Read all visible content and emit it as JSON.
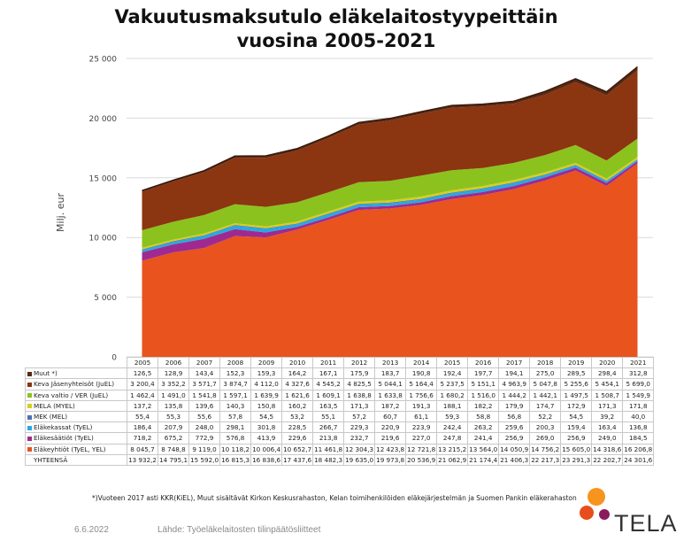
{
  "chart_data": {
    "type": "area",
    "stacked": true,
    "title_line1": "Vakuutusmaksutulo eläkelaitostyypeittäin",
    "title_line2": "vuosina 2005-2021",
    "ylabel": "Milj. eur",
    "ylim": [
      0,
      25000
    ],
    "y_ticks": [
      "0",
      "5 000",
      "10 000",
      "15 000",
      "20 000",
      "25 000"
    ],
    "y_tick_values": [
      0,
      5000,
      10000,
      15000,
      20000,
      25000
    ],
    "categories": [
      "2005",
      "2006",
      "2007",
      "2008",
      "2009",
      "2010",
      "2011",
      "2012",
      "2013",
      "2014",
      "2015",
      "2016",
      "2017",
      "2018",
      "2019",
      "2020",
      "2021"
    ],
    "series": [
      {
        "name": "Eläkeyhtiöt (TyEL, YEL)",
        "color": "#e8531e",
        "values": [
          8045.7,
          8748.8,
          9119.0,
          10118.2,
          10006.4,
          10652.7,
          11461.8,
          12304.3,
          12423.8,
          12721.8,
          13215.2,
          13564.0,
          14050.9,
          14756.2,
          15605.0,
          14318.6,
          16206.8
        ],
        "labels": [
          "8 045,7",
          "8 748,8",
          "9 119,0",
          "10 118,2",
          "10 006,4",
          "10 652,7",
          "11 461,8",
          "12 304,3",
          "12 423,8",
          "12 721,8",
          "13 215,2",
          "13 564,0",
          "14 050,9",
          "14 756,2",
          "15 605,0",
          "14 318,6",
          "16 206,8"
        ]
      },
      {
        "name": "Eläkesäätiöt (TyEL)",
        "color": "#9e2a91",
        "values": [
          718.2,
          675.2,
          772.9,
          576.8,
          413.9,
          229.6,
          213.8,
          232.7,
          219.6,
          227.0,
          247.8,
          241.4,
          256.9,
          269.0,
          256.9,
          249.0,
          184.5
        ],
        "labels": [
          "718,2",
          "675,2",
          "772,9",
          "576,8",
          "413,9",
          "229,6",
          "213,8",
          "232,7",
          "219,6",
          "227,0",
          "247,8",
          "241,4",
          "256,9",
          "269,0",
          "256,9",
          "249,0",
          "184,5"
        ]
      },
      {
        "name": "Eläkekassat (TyEL)",
        "color": "#29a8df",
        "values": [
          186.4,
          207.9,
          248.0,
          298.1,
          301.8,
          228.5,
          266.7,
          229.3,
          220.9,
          223.9,
          242.4,
          263.2,
          259.6,
          200.3,
          159.4,
          163.4,
          136.8
        ],
        "labels": [
          "186,4",
          "207,9",
          "248,0",
          "298,1",
          "301,8",
          "228,5",
          "266,7",
          "229,3",
          "220,9",
          "223,9",
          "242,4",
          "263,2",
          "259,6",
          "200,3",
          "159,4",
          "163,4",
          "136,8"
        ]
      },
      {
        "name": "MEK (MEL)",
        "color": "#4f6fb4",
        "values": [
          55.4,
          55.3,
          55.6,
          57.8,
          54.5,
          53.2,
          55.1,
          57.2,
          60.7,
          61.1,
          59.3,
          58.8,
          56.8,
          52.2,
          54.5,
          39.2,
          40.0
        ],
        "labels": [
          "55,4",
          "55,3",
          "55,6",
          "57,8",
          "54,5",
          "53,2",
          "55,1",
          "57,2",
          "60,7",
          "61,1",
          "59,3",
          "58,8",
          "56,8",
          "52,2",
          "54,5",
          "39,2",
          "40,0"
        ]
      },
      {
        "name": "MELA (MYEL)",
        "color": "#d6cf1c",
        "values": [
          137.2,
          135.8,
          139.6,
          140.3,
          150.8,
          160.2,
          163.5,
          171.3,
          187.2,
          191.3,
          188.1,
          182.2,
          179.9,
          174.7,
          172.9,
          171.3,
          171.8
        ],
        "labels": [
          "137,2",
          "135,8",
          "139,6",
          "140,3",
          "150,8",
          "160,2",
          "163,5",
          "171,3",
          "187,2",
          "191,3",
          "188,1",
          "182,2",
          "179,9",
          "174,7",
          "172,9",
          "171,3",
          "171,8"
        ]
      },
      {
        "name": "Keva valtio / VER (JuEL)",
        "color": "#8cc21e",
        "values": [
          1462.4,
          1491.0,
          1541.8,
          1597.1,
          1639.9,
          1621.6,
          1609.1,
          1638.8,
          1633.8,
          1756.6,
          1680.2,
          1516.0,
          1444.2,
          1442.1,
          1497.5,
          1508.7,
          1549.9
        ],
        "labels": [
          "1 462,4",
          "1 491,0",
          "1 541,8",
          "1 597,1",
          "1 639,9",
          "1 621,6",
          "1 609,1",
          "1 638,8",
          "1 633,8",
          "1 756,6",
          "1 680,2",
          "1 516,0",
          "1 444,2",
          "1 442,1",
          "1 497,5",
          "1 508,7",
          "1 549,9"
        ]
      },
      {
        "name": "Keva Jäsenyhteisöt (JuEL)",
        "color": "#8b3511",
        "values": [
          3200.4,
          3352.2,
          3571.7,
          3874.7,
          4112.0,
          4327.6,
          4545.2,
          4825.5,
          5044.1,
          5164.4,
          5237.5,
          5151.1,
          4963.9,
          5047.8,
          5255.6,
          5454.1,
          5699.0
        ],
        "labels": [
          "3 200,4",
          "3 352,2",
          "3 571,7",
          "3 874,7",
          "4 112,0",
          "4 327,6",
          "4 545,2",
          "4 825,5",
          "5 044,1",
          "5 164,4",
          "5 237,5",
          "5 151,1",
          "4 963,9",
          "5 047,8",
          "5 255,6",
          "5 454,1",
          "5 699,0"
        ]
      },
      {
        "name": "Muut *)",
        "color": "#5a2a12",
        "values": [
          126.5,
          128.9,
          143.4,
          152.3,
          159.3,
          164.2,
          167.1,
          175.9,
          183.7,
          190.8,
          192.4,
          197.7,
          194.1,
          275.0,
          289.5,
          298.4,
          312.8
        ],
        "labels": [
          "126,5",
          "128,9",
          "143,4",
          "152,3",
          "159,3",
          "164,2",
          "167,1",
          "175,9",
          "183,7",
          "190,8",
          "192,4",
          "197,7",
          "194,1",
          "275,0",
          "289,5",
          "298,4",
          "312,8"
        ]
      }
    ],
    "total_label": "YHTEENSÄ",
    "totals": [
      "13 932,2",
      "14 795,1",
      "15 592,0",
      "16 815,3",
      "16 838,6",
      "17 437,6",
      "18 482,3",
      "19 635,0",
      "19 973,8",
      "20 536,9",
      "21 062,9",
      "21 174,4",
      "21 406,3",
      "22 217,3",
      "23 291,3",
      "22 202,7",
      "24 301,6"
    ],
    "grid": "horizontal"
  },
  "footnote": "*)Vuoteen 2017 asti KKR(KiEL), Muut sisältävät Kirkon Keskusrahaston, Kelan toimihenkilöiden eläkejärjestelmän ja Suomen Pankin eläkerahaston",
  "date": "6.6.2022",
  "source": "Lähde: Työeläkelaitosten tilinpäätösliitteet",
  "logo": {
    "text": "TELA",
    "colors": [
      "#f7941d",
      "#e84e1b",
      "#8a1c5c"
    ]
  }
}
